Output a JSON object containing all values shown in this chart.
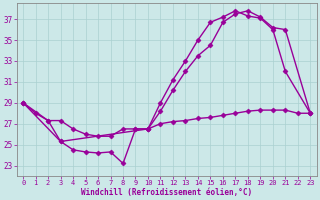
{
  "xlabel": "Windchill (Refroidissement éolien,°C)",
  "line_color": "#990099",
  "bg_color": "#cce8e8",
  "grid_color": "#aad0d0",
  "xlim": [
    -0.5,
    23.5
  ],
  "ylim": [
    22.0,
    38.5
  ],
  "yticks": [
    23,
    25,
    27,
    29,
    31,
    33,
    35,
    37
  ],
  "xticks": [
    0,
    1,
    2,
    3,
    4,
    5,
    6,
    7,
    8,
    9,
    10,
    11,
    12,
    13,
    14,
    15,
    16,
    17,
    18,
    19,
    20,
    21,
    22,
    23
  ],
  "series1_x": [
    0,
    1,
    2,
    3,
    4,
    5,
    6,
    7,
    8,
    9,
    10,
    11,
    12,
    13,
    14,
    15,
    16,
    17,
    18,
    19,
    20,
    21,
    22,
    23
  ],
  "series1_y": [
    29.0,
    28.0,
    27.3,
    27.3,
    26.5,
    26.0,
    25.8,
    25.8,
    26.5,
    26.5,
    26.5,
    27.0,
    27.2,
    27.3,
    27.5,
    27.6,
    27.8,
    28.0,
    28.2,
    28.3,
    28.3,
    28.3,
    28.0,
    28.0
  ],
  "series2_x": [
    0,
    2,
    3,
    4,
    5,
    6,
    7,
    8,
    9,
    10,
    11,
    12,
    13,
    14,
    15,
    16,
    17,
    18,
    19,
    20,
    21,
    23
  ],
  "series2_y": [
    29.0,
    27.3,
    25.3,
    24.5,
    24.3,
    24.2,
    24.3,
    23.2,
    26.5,
    26.5,
    29.0,
    31.2,
    33.0,
    35.0,
    36.7,
    37.2,
    37.8,
    37.3,
    37.1,
    36.0,
    32.0,
    28.0
  ],
  "series3_x": [
    0,
    3,
    10,
    11,
    12,
    13,
    14,
    15,
    16,
    17,
    18,
    19,
    20,
    21,
    23
  ],
  "series3_y": [
    29.0,
    25.3,
    26.5,
    28.2,
    30.2,
    32.0,
    33.5,
    34.5,
    36.7,
    37.5,
    37.8,
    37.2,
    36.2,
    36.0,
    28.0
  ],
  "marker": "D",
  "markersize": 2.5,
  "linewidth": 1.0
}
